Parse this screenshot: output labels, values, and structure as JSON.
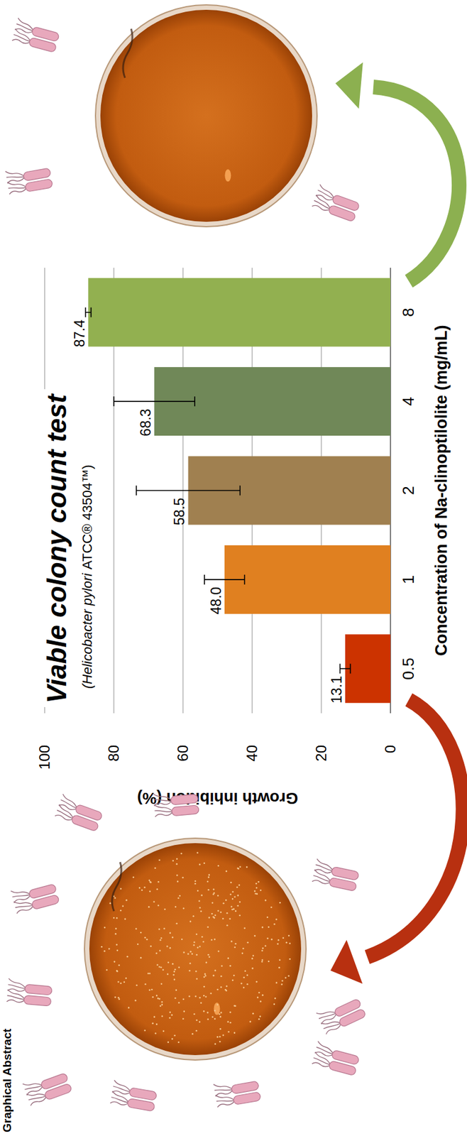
{
  "header": {
    "title": "Graphical Abstract"
  },
  "chart_data": {
    "type": "bar",
    "title": "Viable colony count test",
    "subtitle": "(Helicobacter pylori ATCC® 43504™)",
    "x_label": "Concentration of Na-clinoptilolite (mg/mL)",
    "y_label": "Growth inhibition (%)",
    "categories": [
      "0.5",
      "1",
      "2",
      "4",
      "8"
    ],
    "values": [
      13.1,
      48.0,
      58.5,
      68.3,
      87.4
    ],
    "value_labels": [
      "13.1",
      "48.0",
      "58.5",
      "68.3",
      "87.4"
    ],
    "errors": [
      1.5,
      5.8,
      15.0,
      11.7,
      0.8
    ],
    "colors": [
      "#cc3300",
      "#e08020",
      "#a08050",
      "#708858",
      "#92b050"
    ],
    "ylim": [
      0,
      100
    ],
    "yticks": [
      0,
      20,
      40,
      60,
      80,
      100
    ],
    "grid": true,
    "data_labels": true
  }
}
